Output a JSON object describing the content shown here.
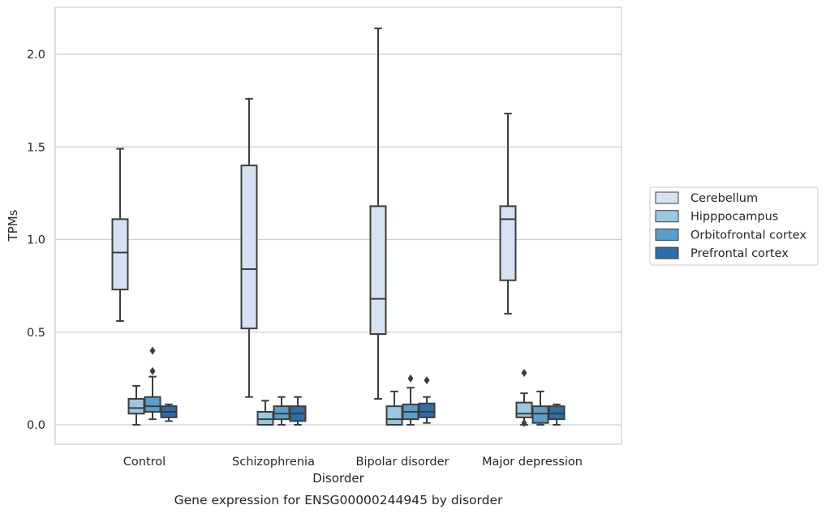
{
  "caption": "Gene expression for ENSG00000244945 by disorder",
  "chart_data": {
    "type": "boxplot",
    "xlabel": "Disorder",
    "ylabel": "TPMs",
    "ylim": [
      -0.1,
      2.25
    ],
    "yticks": [
      0.0,
      0.5,
      1.0,
      1.5,
      2.0
    ],
    "ytick_labels": [
      "0.0",
      "0.5",
      "1.0",
      "1.5",
      "2.0"
    ],
    "grid": "horizontal",
    "legend_position": "right",
    "categories": [
      "Control",
      "Schizophrenia",
      "Bipolar disorder",
      "Major depression"
    ],
    "series": [
      {
        "name": "Cerebellum",
        "color": "#d4e2f1",
        "boxes": [
          {
            "whislo": 0.56,
            "q1": 0.73,
            "med": 0.93,
            "q3": 1.11,
            "whishi": 1.49,
            "fliers": []
          },
          {
            "whislo": 0.15,
            "q1": 0.52,
            "med": 0.84,
            "q3": 1.4,
            "whishi": 1.76,
            "fliers": []
          },
          {
            "whislo": 0.14,
            "q1": 0.49,
            "med": 0.68,
            "q3": 1.18,
            "whishi": 2.14,
            "fliers": []
          },
          {
            "whislo": 0.6,
            "q1": 0.78,
            "med": 1.11,
            "q3": 1.18,
            "whishi": 1.68,
            "fliers": []
          }
        ]
      },
      {
        "name": "Hipppocampus",
        "color": "#9ac8e0",
        "boxes": [
          {
            "whislo": 0.0,
            "q1": 0.06,
            "med": 0.09,
            "q3": 0.14,
            "whishi": 0.21,
            "fliers": []
          },
          {
            "whislo": 0.0,
            "q1": 0.0,
            "med": 0.03,
            "q3": 0.07,
            "whishi": 0.13,
            "fliers": []
          },
          {
            "whislo": 0.0,
            "q1": 0.0,
            "med": 0.03,
            "q3": 0.1,
            "whishi": 0.18,
            "fliers": []
          },
          {
            "whislo": 0.0,
            "q1": 0.04,
            "med": 0.06,
            "q3": 0.12,
            "whishi": 0.17,
            "fliers": [
              0.01,
              0.28
            ]
          }
        ]
      },
      {
        "name": "Orbitofrontal cortex",
        "color": "#5a9ec9",
        "boxes": [
          {
            "whislo": 0.03,
            "q1": 0.07,
            "med": 0.1,
            "q3": 0.15,
            "whishi": 0.26,
            "fliers": [
              0.29,
              0.4
            ]
          },
          {
            "whislo": 0.0,
            "q1": 0.03,
            "med": 0.06,
            "q3": 0.1,
            "whishi": 0.15,
            "fliers": []
          },
          {
            "whislo": 0.0,
            "q1": 0.03,
            "med": 0.07,
            "q3": 0.11,
            "whishi": 0.2,
            "fliers": [
              0.25
            ]
          },
          {
            "whislo": 0.0,
            "q1": 0.01,
            "med": 0.06,
            "q3": 0.1,
            "whishi": 0.18,
            "fliers": []
          }
        ]
      },
      {
        "name": "Prefrontal cortex",
        "color": "#2d6ea9",
        "boxes": [
          {
            "whislo": 0.02,
            "q1": 0.04,
            "med": 0.07,
            "q3": 0.1,
            "whishi": 0.11,
            "fliers": []
          },
          {
            "whislo": 0.0,
            "q1": 0.02,
            "med": 0.06,
            "q3": 0.1,
            "whishi": 0.15,
            "fliers": []
          },
          {
            "whislo": 0.01,
            "q1": 0.04,
            "med": 0.07,
            "q3": 0.115,
            "whishi": 0.15,
            "fliers": [
              0.24
            ]
          },
          {
            "whislo": 0.0,
            "q1": 0.03,
            "med": 0.06,
            "q3": 0.1,
            "whishi": 0.11,
            "fliers": []
          }
        ]
      }
    ]
  }
}
